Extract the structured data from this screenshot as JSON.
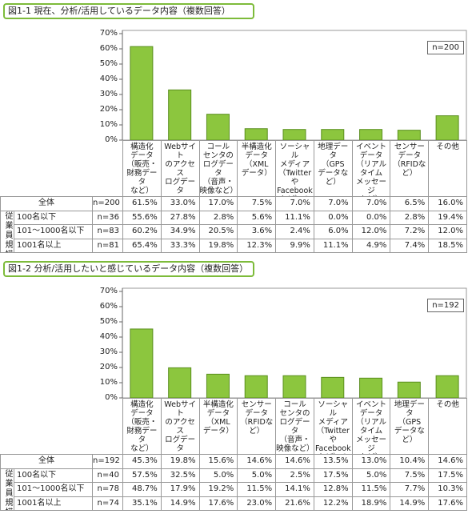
{
  "chart_data": [
    {
      "type": "bar",
      "title": "図1-1 現在、分析/活用しているデータ内容（複数回答）",
      "n_label": "n=200",
      "categories": [
        "構造化\nデータ\n（販売・\n財務データ\nなど）",
        "Webサイト\nのアクセス\nログデータ",
        "コール\nセンタの\nログデータ\n（音声・\n映像など）",
        "半構造化\nデータ\n（XML\nデータ）",
        "ソーシャル\nメディア\n（Twitterや\nFacebook\nなど）の\nデータ",
        "地理データ\n（GPS\nデータなど）",
        "イベント\nデータ\n（リアル\nタイム\nメッセージ\nなど）",
        "センサー\nデータ\n（RFIDなど）",
        "その他"
      ],
      "values": [
        61.5,
        33.0,
        17.0,
        7.5,
        7.0,
        7.0,
        7.0,
        6.5,
        16.0
      ],
      "value_labels": [
        "61.5%",
        "33.0%",
        "17.0%",
        "7.5%",
        "7.0%",
        "7.0%",
        "7.0%",
        "6.5%",
        "16.0%"
      ],
      "color": "#8cc63e",
      "ylim": [
        0,
        70
      ],
      "yticks": [
        {
          "value": 0,
          "label": "0%"
        },
        {
          "value": 10,
          "label": "10%"
        },
        {
          "value": 20,
          "label": "20%"
        },
        {
          "value": 30,
          "label": "30%"
        },
        {
          "value": 40,
          "label": "40%"
        },
        {
          "value": 50,
          "label": "50%"
        },
        {
          "value": 60,
          "label": "60%"
        },
        {
          "value": 70,
          "label": "70%"
        }
      ],
      "total_label": "全体",
      "total_n": "n=200",
      "group_label": "従業員規模",
      "rows": [
        {
          "label": "100名以下",
          "n": "n=36",
          "cells": [
            "55.6%",
            "27.8%",
            "2.8%",
            "5.6%",
            "11.1%",
            "0.0%",
            "0.0%",
            "2.8%",
            "19.4%"
          ]
        },
        {
          "label": "101〜1000名以下",
          "n": "n=83",
          "cells": [
            "60.2%",
            "34.9%",
            "20.5%",
            "3.6%",
            "2.4%",
            "6.0%",
            "12.0%",
            "7.2%",
            "12.0%"
          ]
        },
        {
          "label": "1001名以上",
          "n": "n=81",
          "cells": [
            "65.4%",
            "33.3%",
            "19.8%",
            "12.3%",
            "9.9%",
            "11.1%",
            "4.9%",
            "7.4%",
            "18.5%"
          ]
        }
      ]
    },
    {
      "type": "bar",
      "title": "図1-2 分析/活用したいと感じているデータ内容（複数回答）",
      "n_label": "n=192",
      "categories": [
        "構造化\nデータ\n（販売・\n財務データ\nなど）",
        "Webサイト\nのアクセス\nログデータ",
        "半構造化\nデータ\n（XML\nデータ）",
        "センサー\nデータ\n（RFIDなど）",
        "コール\nセンタの\nログデータ\n（音声・\n映像など）",
        "ソーシャル\nメディア\n（Twitterや\nFacebook\nなど）の\nデータ",
        "イベント\nデータ\n（リアル\nタイム\nメッセージ\nなど）",
        "地理データ\n（GPS\nデータなど）",
        "その他"
      ],
      "values": [
        45.3,
        19.8,
        15.6,
        14.6,
        14.6,
        13.5,
        13.0,
        10.4,
        14.6
      ],
      "value_labels": [
        "45.3%",
        "19.8%",
        "15.6%",
        "14.6%",
        "14.6%",
        "13.5%",
        "13.0%",
        "10.4%",
        "14.6%"
      ],
      "color": "#8cc63e",
      "ylim": [
        0,
        70
      ],
      "yticks": [
        {
          "value": 0,
          "label": "0%"
        },
        {
          "value": 10,
          "label": "10%"
        },
        {
          "value": 20,
          "label": "20%"
        },
        {
          "value": 30,
          "label": "30%"
        },
        {
          "value": 40,
          "label": "40%"
        },
        {
          "value": 50,
          "label": "50%"
        },
        {
          "value": 60,
          "label": "60%"
        },
        {
          "value": 70,
          "label": "70%"
        }
      ],
      "total_label": "全体",
      "total_n": "n=192",
      "group_label": "従業員規模",
      "rows": [
        {
          "label": "100名以下",
          "n": "n=40",
          "cells": [
            "57.5%",
            "32.5%",
            "5.0%",
            "5.0%",
            "2.5%",
            "17.5%",
            "5.0%",
            "7.5%",
            "17.5%"
          ]
        },
        {
          "label": "101〜1000名以下",
          "n": "n=78",
          "cells": [
            "48.7%",
            "17.9%",
            "19.2%",
            "11.5%",
            "14.1%",
            "12.8%",
            "11.5%",
            "7.7%",
            "10.3%"
          ]
        },
        {
          "label": "1001名以上",
          "n": "n=74",
          "cells": [
            "35.1%",
            "14.9%",
            "17.6%",
            "23.0%",
            "21.6%",
            "12.2%",
            "18.9%",
            "14.9%",
            "17.6%"
          ]
        }
      ]
    }
  ]
}
